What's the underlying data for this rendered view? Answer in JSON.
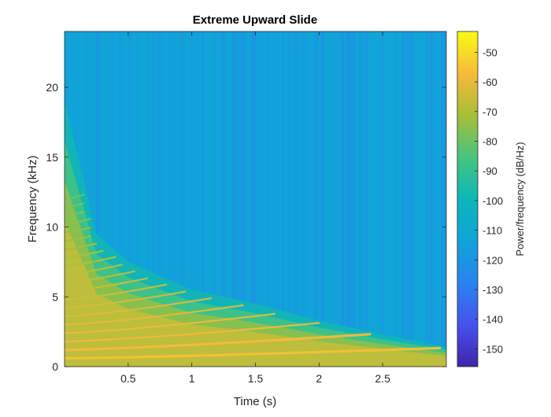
{
  "chart_data": {
    "type": "heatmap",
    "title": "Extreme Upward Slide",
    "xlabel": "Time (s)",
    "ylabel": "Frequency (kHz)",
    "colorbar_label": "Power/frequency (dB/Hz)",
    "xlim": [
      0,
      3
    ],
    "ylim": [
      0,
      24
    ],
    "x_ticks": [
      0.5,
      1,
      1.5,
      2,
      2.5
    ],
    "x_tick_labels": [
      "0.5",
      "1",
      "1.5",
      "2",
      "2.5"
    ],
    "y_ticks": [
      0,
      5,
      10,
      15,
      20
    ],
    "y_tick_labels": [
      "0",
      "5",
      "10",
      "15",
      "20"
    ],
    "clim": [
      -156,
      -43
    ],
    "colorbar_ticks": [
      -50,
      -60,
      -70,
      -80,
      -90,
      -100,
      -110,
      -120,
      -130,
      -140,
      -150
    ],
    "colorbar_tick_labels": [
      "-50",
      "-60",
      "-70",
      "-80",
      "-90",
      "-100",
      "-110",
      "-120",
      "-130",
      "-140",
      "-150"
    ],
    "colormap": "parula",
    "background_level": -113,
    "harmonics": {
      "fundamental_kHz_start": 0.6,
      "fundamental_kHz_end": 1.35,
      "count": 20,
      "peak_level": -56
    },
    "energy_envelope_kHz": [
      {
        "t": 0.0,
        "f": 19.0
      },
      {
        "t": 0.25,
        "f": 9.5
      },
      {
        "t": 0.5,
        "f": 7.5
      },
      {
        "t": 1.0,
        "f": 5.5
      },
      {
        "t": 1.5,
        "f": 4.5
      },
      {
        "t": 2.0,
        "f": 3.3
      },
      {
        "t": 2.5,
        "f": 2.3
      },
      {
        "t": 3.0,
        "f": 1.4
      }
    ]
  }
}
